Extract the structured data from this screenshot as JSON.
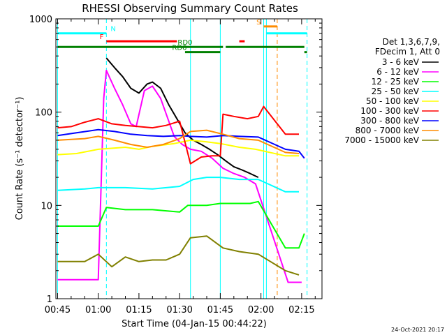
{
  "chart_data": {
    "type": "line",
    "title": "RHESSI Observing Summary Count Rates",
    "xlabel": "Start Time (04-Jan-15 00:44:22)",
    "ylabel": "Count Rate (s⁻¹ detector⁻¹)",
    "y_scale": "log",
    "ylim": [
      1,
      1000
    ],
    "xlim": [
      "00:45",
      "02:22"
    ],
    "x_ticks": [
      "00:45",
      "01:00",
      "01:15",
      "01:30",
      "01:45",
      "02:00",
      "02:15"
    ],
    "y_ticks": [
      "1",
      "10",
      "100",
      "1000"
    ],
    "legend_header": [
      "Det 1,3,6,7,9,",
      "FDecim 1, Att 0"
    ],
    "legend_position": "right",
    "series": [
      {
        "name": "3 - 6 keV",
        "color": "#000000",
        "points": [
          [
            "01:03",
            380
          ],
          [
            "01:06",
            300
          ],
          [
            "01:09",
            240
          ],
          [
            "01:12",
            180
          ],
          [
            "01:15",
            160
          ],
          [
            "01:18",
            200
          ],
          [
            "01:20",
            210
          ],
          [
            "01:23",
            180
          ],
          [
            "01:26",
            120
          ],
          [
            "01:29",
            85
          ],
          [
            "01:32",
            60
          ],
          [
            "01:35",
            50
          ],
          [
            "01:38",
            45
          ],
          [
            "01:41",
            40
          ],
          [
            "01:44",
            35
          ],
          [
            "01:47",
            30
          ],
          [
            "01:50",
            26
          ],
          [
            "01:53",
            24
          ],
          [
            "01:56",
            22
          ],
          [
            "01:59",
            20
          ]
        ]
      },
      {
        "name": "6 - 12 keV",
        "color": "#ff00ff",
        "points": [
          [
            "00:45",
            1.6
          ],
          [
            "00:58",
            1.6
          ],
          [
            "01:00",
            1.6
          ],
          [
            "01:02",
            140
          ],
          [
            "01:03",
            280
          ],
          [
            "01:06",
            180
          ],
          [
            "01:09",
            120
          ],
          [
            "01:12",
            75
          ],
          [
            "01:14",
            70
          ],
          [
            "01:17",
            170
          ],
          [
            "01:20",
            190
          ],
          [
            "01:23",
            140
          ],
          [
            "01:26",
            80
          ],
          [
            "01:28",
            55
          ],
          [
            "01:31",
            45
          ],
          [
            "01:34",
            40
          ],
          [
            "01:38",
            38
          ],
          [
            "01:42",
            32
          ],
          [
            "01:46",
            25
          ],
          [
            "01:50",
            22
          ],
          [
            "01:54",
            20
          ],
          [
            "01:58",
            17
          ],
          [
            "02:10",
            1.5
          ],
          [
            "02:15",
            1.5
          ]
        ]
      },
      {
        "name": "12 - 25 keV",
        "color": "#00ff00",
        "points": [
          [
            "00:45",
            6
          ],
          [
            "01:00",
            6
          ],
          [
            "01:03",
            9.5
          ],
          [
            "01:10",
            9
          ],
          [
            "01:20",
            9
          ],
          [
            "01:30",
            8.5
          ],
          [
            "01:33",
            10
          ],
          [
            "01:40",
            10
          ],
          [
            "01:45",
            10.5
          ],
          [
            "01:50",
            10.5
          ],
          [
            "01:56",
            10.5
          ],
          [
            "01:59",
            11
          ],
          [
            "02:09",
            3.5
          ],
          [
            "02:14",
            3.5
          ],
          [
            "02:16",
            5
          ]
        ]
      },
      {
        "name": "25 - 50 keV",
        "color": "#00ffff",
        "points": [
          [
            "00:45",
            14.5
          ],
          [
            "00:55",
            15
          ],
          [
            "01:00",
            15.5
          ],
          [
            "01:10",
            15.5
          ],
          [
            "01:20",
            15
          ],
          [
            "01:30",
            16
          ],
          [
            "01:35",
            19
          ],
          [
            "01:40",
            20
          ],
          [
            "01:45",
            20
          ],
          [
            "01:52",
            19
          ],
          [
            "01:59",
            19
          ],
          [
            "02:09",
            14
          ],
          [
            "02:14",
            14
          ]
        ]
      },
      {
        "name": "50 - 100 keV",
        "color": "#ffff00",
        "points": [
          [
            "00:45",
            35
          ],
          [
            "00:52",
            36
          ],
          [
            "01:00",
            40
          ],
          [
            "01:10",
            42
          ],
          [
            "01:15",
            40
          ],
          [
            "01:20",
            43
          ],
          [
            "01:28",
            46
          ],
          [
            "01:34",
            50
          ],
          [
            "01:40",
            48
          ],
          [
            "01:45",
            46
          ],
          [
            "01:52",
            42
          ],
          [
            "01:58",
            40
          ],
          [
            "02:09",
            34
          ],
          [
            "02:14",
            34
          ]
        ]
      },
      {
        "name": "100 - 300 keV",
        "color": "#ff0000",
        "points": [
          [
            "00:45",
            68
          ],
          [
            "00:50",
            70
          ],
          [
            "00:55",
            78
          ],
          [
            "01:00",
            85
          ],
          [
            "01:05",
            75
          ],
          [
            "01:10",
            72
          ],
          [
            "01:15",
            70
          ],
          [
            "01:20",
            68
          ],
          [
            "01:25",
            72
          ],
          [
            "01:30",
            80
          ],
          [
            "01:34",
            28
          ],
          [
            "01:38",
            33
          ],
          [
            "01:42",
            34
          ],
          [
            "01:45",
            34
          ],
          [
            "01:46",
            95
          ],
          [
            "01:50",
            90
          ],
          [
            "01:55",
            85
          ],
          [
            "01:59",
            90
          ],
          [
            "02:01",
            115
          ],
          [
            "02:09",
            58
          ],
          [
            "02:14",
            58
          ]
        ]
      },
      {
        "name": "300 - 800 keV",
        "color": "#0000ff",
        "points": [
          [
            "00:45",
            56
          ],
          [
            "00:52",
            60
          ],
          [
            "01:00",
            65
          ],
          [
            "01:06",
            62
          ],
          [
            "01:12",
            58
          ],
          [
            "01:18",
            56
          ],
          [
            "01:24",
            55
          ],
          [
            "01:30",
            56
          ],
          [
            "01:34",
            55
          ],
          [
            "01:40",
            54
          ],
          [
            "01:46",
            56
          ],
          [
            "01:52",
            55
          ],
          [
            "01:59",
            54
          ],
          [
            "02:09",
            40
          ],
          [
            "02:14",
            38
          ],
          [
            "02:16",
            32
          ]
        ]
      },
      {
        "name": "800 - 7000 keV",
        "color": "#ff8c00",
        "points": [
          [
            "00:45",
            50
          ],
          [
            "00:55",
            52
          ],
          [
            "01:00",
            55
          ],
          [
            "01:06",
            50
          ],
          [
            "01:12",
            45
          ],
          [
            "01:18",
            42
          ],
          [
            "01:24",
            45
          ],
          [
            "01:30",
            52
          ],
          [
            "01:34",
            62
          ],
          [
            "01:40",
            64
          ],
          [
            "01:46",
            58
          ],
          [
            "01:52",
            52
          ],
          [
            "01:59",
            50
          ],
          [
            "02:09",
            37
          ],
          [
            "02:14",
            36
          ]
        ]
      },
      {
        "name": "7000 - 15000 keV",
        "color": "#808000",
        "points": [
          [
            "00:45",
            2.5
          ],
          [
            "00:55",
            2.5
          ],
          [
            "01:00",
            3
          ],
          [
            "01:05",
            2.2
          ],
          [
            "01:10",
            2.8
          ],
          [
            "01:15",
            2.5
          ],
          [
            "01:20",
            2.6
          ],
          [
            "01:25",
            2.6
          ],
          [
            "01:30",
            3
          ],
          [
            "01:34",
            4.5
          ],
          [
            "01:40",
            4.7
          ],
          [
            "01:46",
            3.5
          ],
          [
            "01:52",
            3.2
          ],
          [
            "01:59",
            3
          ],
          [
            "02:09",
            2
          ],
          [
            "02:14",
            1.8
          ]
        ]
      }
    ],
    "status_bars": [
      {
        "label": "N",
        "color": "#00ffff",
        "level": 700,
        "spans": [
          [
            "00:45",
            "01:03"
          ],
          [
            "02:02",
            "02:17"
          ]
        ]
      },
      {
        "label": "F",
        "color": "#ff0000",
        "level": 575,
        "spans": [
          [
            "01:03",
            "01:29"
          ],
          [
            "01:52",
            "01:54"
          ]
        ]
      },
      {
        "label": "S",
        "color": "#ff8c00",
        "level": 830,
        "spans": [
          [
            "02:01",
            "02:06"
          ]
        ]
      },
      {
        "label": "RD0",
        "color": "#008000",
        "level": 500,
        "spans": [
          [
            "00:45",
            "01:46"
          ],
          [
            "01:47",
            "02:16"
          ]
        ]
      },
      {
        "label": "RD6",
        "color": "#008000",
        "level": 440,
        "spans": [
          [
            "01:32",
            "01:45"
          ],
          [
            "02:16",
            "02:17"
          ]
        ]
      }
    ],
    "vlines": [
      {
        "time": "00:45",
        "color": "#00ffff",
        "style": "solid"
      },
      {
        "time": "01:03",
        "color": "#00ffff",
        "style": "dashed"
      },
      {
        "time": "01:34",
        "color": "#00ffff",
        "style": "solid"
      },
      {
        "time": "01:45",
        "color": "#00ffff",
        "style": "solid"
      },
      {
        "time": "02:01",
        "color": "#00ffff",
        "style": "solid"
      },
      {
        "time": "02:02",
        "color": "#00ffff",
        "style": "solid"
      },
      {
        "time": "02:06",
        "color": "#ff8c00",
        "style": "dashed"
      },
      {
        "time": "02:17",
        "color": "#00ffff",
        "style": "dashed"
      }
    ],
    "footer_timestamp": "24-Oct-2021 20:17"
  }
}
